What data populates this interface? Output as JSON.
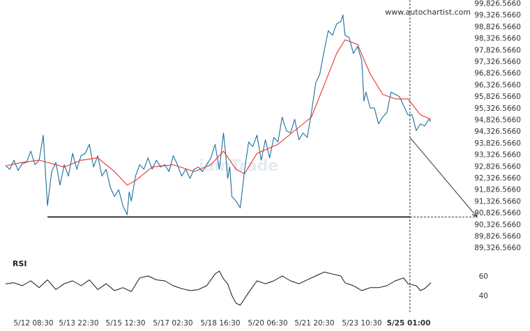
{
  "watermark": "www.autochartist.com",
  "chart_data": {
    "type": "line",
    "price_panel": {
      "y_ticks": [
        "99,826.5660",
        "99,326.5660",
        "98,826.5660",
        "98,326.5660",
        "97,826.5660",
        "97,326.5660",
        "96,826.5660",
        "96,326.5660",
        "95,826.5660",
        "95,326.5660",
        "94,826.5660",
        "94,326.5660",
        "93,826.5660",
        "93,326.5660",
        "92,826.5660",
        "92,326.5660",
        "91,826.5660",
        "91,326.5660",
        "90,826.5660",
        "90,326.5660",
        "89,826.5660",
        "89,326.5660"
      ],
      "ylim": [
        89100,
        99900
      ],
      "support_level": 90500,
      "series": [
        {
          "kind": "price",
          "color": "#1c6e9e",
          "points": [
            [
              0,
              92750
            ],
            [
              2,
              92600
            ],
            [
              4,
              93000
            ],
            [
              6,
              92550
            ],
            [
              8,
              92850
            ],
            [
              10,
              92900
            ],
            [
              12,
              93400
            ],
            [
              14,
              92800
            ],
            [
              16,
              93000
            ],
            [
              18,
              94100
            ],
            [
              19,
              92500
            ],
            [
              20,
              91000
            ],
            [
              22,
              92500
            ],
            [
              24,
              92900
            ],
            [
              26,
              91900
            ],
            [
              28,
              92800
            ],
            [
              30,
              92300
            ],
            [
              32,
              93300
            ],
            [
              34,
              92600
            ],
            [
              36,
              93200
            ],
            [
              38,
              93300
            ],
            [
              40,
              93700
            ],
            [
              42,
              92700
            ],
            [
              44,
              93200
            ],
            [
              46,
              92300
            ],
            [
              48,
              92600
            ],
            [
              50,
              91800
            ],
            [
              52,
              91400
            ],
            [
              54,
              91700
            ],
            [
              56,
              91000
            ],
            [
              58,
              90600
            ],
            [
              59,
              91600
            ],
            [
              60,
              91200
            ],
            [
              62,
              92300
            ],
            [
              64,
              92800
            ],
            [
              66,
              92600
            ],
            [
              68,
              93100
            ],
            [
              70,
              92600
            ],
            [
              72,
              93000
            ],
            [
              74,
              92700
            ],
            [
              76,
              92800
            ],
            [
              78,
              92500
            ],
            [
              80,
              93200
            ],
            [
              82,
              92800
            ],
            [
              84,
              92300
            ],
            [
              86,
              92600
            ],
            [
              88,
              92200
            ],
            [
              90,
              92600
            ],
            [
              92,
              92700
            ],
            [
              94,
              92500
            ],
            [
              96,
              92800
            ],
            [
              98,
              93100
            ],
            [
              100,
              93700
            ],
            [
              102,
              92600
            ],
            [
              104,
              94200
            ],
            [
              105,
              93300
            ],
            [
              106,
              92200
            ],
            [
              107,
              92700
            ],
            [
              108,
              91400
            ],
            [
              110,
              91200
            ],
            [
              112,
              90900
            ],
            [
              114,
              92500
            ],
            [
              116,
              93800
            ],
            [
              118,
              93600
            ],
            [
              120,
              94100
            ],
            [
              122,
              93000
            ],
            [
              124,
              93900
            ],
            [
              126,
              93100
            ],
            [
              128,
              94000
            ],
            [
              130,
              93800
            ],
            [
              132,
              94900
            ],
            [
              134,
              94300
            ],
            [
              136,
              94200
            ],
            [
              138,
              94800
            ],
            [
              140,
              93900
            ],
            [
              142,
              94200
            ],
            [
              144,
              94000
            ],
            [
              146,
              95100
            ],
            [
              148,
              96400
            ],
            [
              150,
              96800
            ],
            [
              152,
              97800
            ],
            [
              154,
              98700
            ],
            [
              156,
              98500
            ],
            [
              158,
              99000
            ],
            [
              160,
              99100
            ],
            [
              161,
              99400
            ],
            [
              162,
              98500
            ],
            [
              164,
              98400
            ],
            [
              166,
              97700
            ],
            [
              168,
              98000
            ],
            [
              170,
              97400
            ],
            [
              171,
              95600
            ],
            [
              172,
              96000
            ],
            [
              174,
              95300
            ],
            [
              176,
              95300
            ],
            [
              178,
              94600
            ],
            [
              180,
              94900
            ],
            [
              182,
              95100
            ],
            [
              184,
              96000
            ],
            [
              186,
              95900
            ],
            [
              188,
              95800
            ],
            [
              190,
              95400
            ],
            [
              192,
              95000
            ],
            [
              194,
              95000
            ],
            [
              196,
              94300
            ],
            [
              198,
              94600
            ],
            [
              200,
              94500
            ],
            [
              202,
              94800
            ],
            [
              203,
              94700
            ]
          ]
        },
        {
          "kind": "moving_average",
          "color": "#e8312d",
          "points": [
            [
              0,
              92750
            ],
            [
              8,
              92900
            ],
            [
              16,
              93000
            ],
            [
              20,
              92900
            ],
            [
              28,
              92700
            ],
            [
              36,
              93000
            ],
            [
              44,
              93100
            ],
            [
              52,
              92500
            ],
            [
              58,
              91900
            ],
            [
              62,
              92100
            ],
            [
              70,
              92700
            ],
            [
              80,
              92800
            ],
            [
              90,
              92500
            ],
            [
              98,
              92800
            ],
            [
              104,
              93400
            ],
            [
              110,
              92600
            ],
            [
              114,
              92400
            ],
            [
              120,
              93300
            ],
            [
              130,
              93700
            ],
            [
              138,
              94300
            ],
            [
              146,
              94900
            ],
            [
              152,
              96300
            ],
            [
              158,
              97700
            ],
            [
              162,
              98300
            ],
            [
              168,
              98100
            ],
            [
              174,
              96800
            ],
            [
              180,
              95900
            ],
            [
              186,
              95700
            ],
            [
              192,
              95700
            ],
            [
              198,
              95000
            ],
            [
              203,
              94800
            ]
          ]
        }
      ],
      "projection": {
        "from": [
          193,
          94000
        ],
        "to": [
          225,
          90500
        ]
      },
      "current_time_x": 193
    },
    "rsi_panel": {
      "label": "RSI",
      "y_ticks": [
        "60",
        "40"
      ],
      "ylim": [
        25,
        75
      ],
      "values": [
        [
          0,
          52
        ],
        [
          4,
          53
        ],
        [
          8,
          50
        ],
        [
          12,
          55
        ],
        [
          16,
          48
        ],
        [
          20,
          56
        ],
        [
          24,
          46
        ],
        [
          28,
          52
        ],
        [
          32,
          55
        ],
        [
          36,
          50
        ],
        [
          40,
          56
        ],
        [
          44,
          46
        ],
        [
          48,
          52
        ],
        [
          52,
          45
        ],
        [
          56,
          48
        ],
        [
          60,
          44
        ],
        [
          64,
          58
        ],
        [
          68,
          60
        ],
        [
          72,
          56
        ],
        [
          76,
          55
        ],
        [
          80,
          50
        ],
        [
          84,
          47
        ],
        [
          88,
          45
        ],
        [
          92,
          46
        ],
        [
          96,
          50
        ],
        [
          100,
          62
        ],
        [
          102,
          65
        ],
        [
          104,
          57
        ],
        [
          106,
          52
        ],
        [
          108,
          40
        ],
        [
          110,
          32
        ],
        [
          112,
          30
        ],
        [
          116,
          43
        ],
        [
          120,
          55
        ],
        [
          124,
          52
        ],
        [
          128,
          55
        ],
        [
          132,
          60
        ],
        [
          136,
          55
        ],
        [
          140,
          52
        ],
        [
          144,
          56
        ],
        [
          148,
          60
        ],
        [
          152,
          64
        ],
        [
          156,
          62
        ],
        [
          160,
          60
        ],
        [
          162,
          53
        ],
        [
          166,
          50
        ],
        [
          170,
          45
        ],
        [
          174,
          48
        ],
        [
          178,
          48
        ],
        [
          182,
          50
        ],
        [
          186,
          55
        ],
        [
          190,
          58
        ],
        [
          192,
          52
        ],
        [
          196,
          50
        ],
        [
          198,
          45
        ],
        [
          200,
          47
        ],
        [
          203,
          53
        ]
      ]
    },
    "x_ticks": [
      "5/12 08:30",
      "5/13 22:30",
      "5/15 12:30",
      "5/17 02:30",
      "5/18 16:30",
      "5/20 06:30",
      "5/21 20:30",
      "5/23 10:30",
      "5/25 01:00"
    ],
    "x_ticks_bold_index": 8,
    "xlim": [
      0,
      225
    ]
  }
}
